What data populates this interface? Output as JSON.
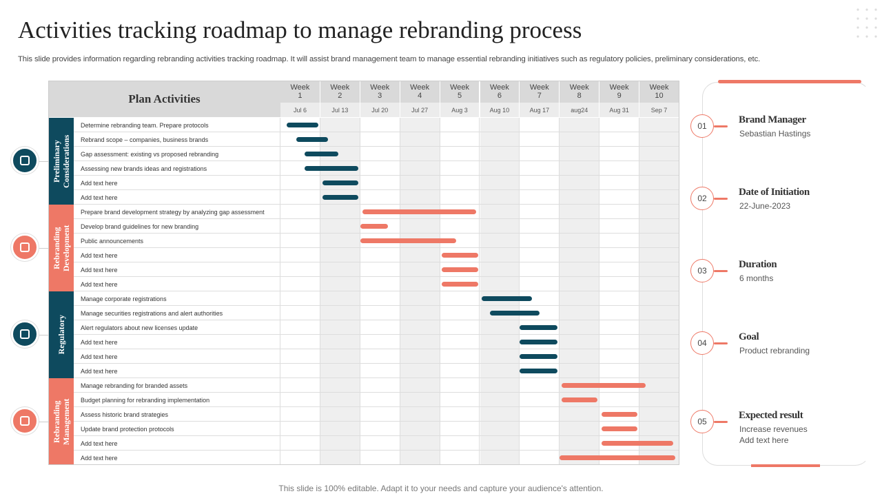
{
  "header": {
    "title": "Activities tracking roadmap to manage rebranding process",
    "subtitle": "This slide provides information regarding rebranding activities tracking roadmap. It will assist brand management team to manage essential rebranding initiatives such as regulatory policies, preliminary considerations, etc."
  },
  "gantt": {
    "heading": "Plan Activities",
    "weeks": [
      {
        "label": "Week 1",
        "date": "Jul 6"
      },
      {
        "label": "Week 2",
        "date": "Jul 13"
      },
      {
        "label": "Week 3",
        "date": "Jul 20"
      },
      {
        "label": "Week 4",
        "date": "Jul 27"
      },
      {
        "label": "Week 5",
        "date": "Aug 3"
      },
      {
        "label": "Week 6",
        "date": "Aug 10"
      },
      {
        "label": "Week 7",
        "date": "Aug 17"
      },
      {
        "label": "Week 8",
        "date": "aug24"
      },
      {
        "label": "Week 9",
        "date": "Aug 31"
      },
      {
        "label": "Week 10",
        "date": "Sep 7"
      }
    ],
    "groups": [
      {
        "name": "Preliminary Considerations",
        "color": "#0e4a5e",
        "tasks": [
          {
            "label": "Determine rebranding team. Prepare protocols",
            "start": 0.15,
            "end": 0.95
          },
          {
            "label": "Rebrand scope – companies, business brands",
            "start": 0.4,
            "end": 1.2
          },
          {
            "label": "Gap assessment: existing vs proposed rebranding",
            "start": 0.6,
            "end": 1.45
          },
          {
            "label": "Assessing new brands ideas and registrations",
            "start": 0.6,
            "end": 1.95
          },
          {
            "label": "Add text here",
            "start": 1.05,
            "end": 1.95
          },
          {
            "label": "Add text here",
            "start": 1.05,
            "end": 1.95
          }
        ]
      },
      {
        "name": "Rebranding Development",
        "color": "#ee7866",
        "tasks": [
          {
            "label": "Prepare brand development strategy by analyzing gap assessment",
            "start": 2.05,
            "end": 4.9
          },
          {
            "label": "Develop brand guidelines for new branding",
            "start": 2.0,
            "end": 2.7
          },
          {
            "label": "Public announcements",
            "start": 2.0,
            "end": 4.4
          },
          {
            "label": "Add text here",
            "start": 4.05,
            "end": 4.95
          },
          {
            "label": "Add text here",
            "start": 4.05,
            "end": 4.95
          },
          {
            "label": "Add text here",
            "start": 4.05,
            "end": 4.95
          }
        ]
      },
      {
        "name": "Regulatory",
        "color": "#0e4a5e",
        "tasks": [
          {
            "label": "Manage corporate registrations",
            "start": 5.05,
            "end": 6.3
          },
          {
            "label": "Manage securities registrations and alert authorities",
            "start": 5.25,
            "end": 6.5
          },
          {
            "label": "Alert regulators about new licenses update",
            "start": 6.0,
            "end": 6.95
          },
          {
            "label": "Add text here",
            "start": 6.0,
            "end": 6.95
          },
          {
            "label": "Add text here",
            "start": 6.0,
            "end": 6.95
          },
          {
            "label": "Add text here",
            "start": 6.0,
            "end": 6.95
          }
        ]
      },
      {
        "name": "Rebranding Management",
        "color": "#ee7866",
        "tasks": [
          {
            "label": "Manage rebranding for branded assets",
            "start": 7.05,
            "end": 9.15
          },
          {
            "label": "Budget planning for rebranding implementation",
            "start": 7.05,
            "end": 7.95
          },
          {
            "label": "Assess historic brand strategies",
            "start": 8.05,
            "end": 8.95
          },
          {
            "label": "Update brand protection protocols",
            "start": 8.05,
            "end": 8.95
          },
          {
            "label": "Add text here",
            "start": 8.05,
            "end": 9.85
          },
          {
            "label": "Add text here",
            "start": 7.0,
            "end": 9.9
          }
        ]
      }
    ]
  },
  "details": [
    {
      "number": "01",
      "title": "Brand Manager",
      "lines": [
        "Sebastian Hastings"
      ]
    },
    {
      "number": "02",
      "title": "Date of Initiation",
      "lines": [
        "22-June-2023"
      ]
    },
    {
      "number": "03",
      "title": "Duration",
      "lines": [
        "6 months"
      ]
    },
    {
      "number": "04",
      "title": "Goal",
      "lines": [
        "Product rebranding"
      ]
    },
    {
      "number": "05",
      "title": "Expected result",
      "lines": [
        "Increase revenues",
        "Add text here"
      ]
    }
  ],
  "footer": "This slide is 100% editable. Adapt it to your needs and capture your audience's attention."
}
